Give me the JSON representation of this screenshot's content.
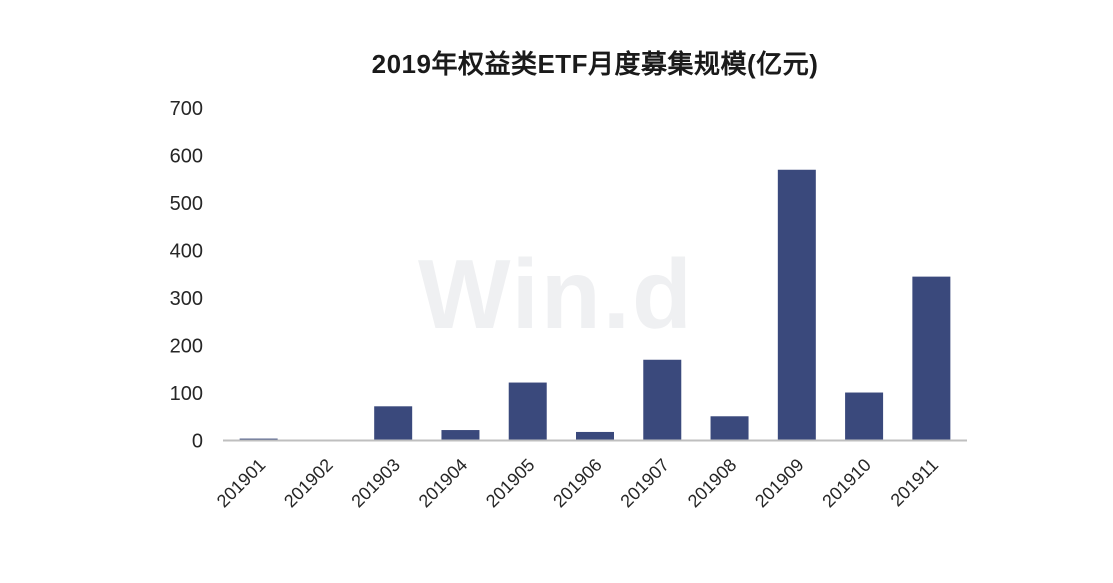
{
  "watermark_text": "Win.d",
  "colors": {
    "bar": "#3a497c",
    "axis_line": "#bfbfbf",
    "tick_text": "#262626",
    "title_text": "#1a1a1a",
    "watermark_text": "#eff0f2"
  },
  "chart_data": {
    "type": "bar",
    "title": "2019年权益类ETF月度募集规模(亿元)",
    "categories": [
      "201901",
      "201902",
      "201903",
      "201904",
      "201905",
      "201906",
      "201907",
      "201908",
      "201909",
      "201910",
      "201911"
    ],
    "values": [
      4,
      0,
      72,
      22,
      122,
      18,
      170,
      51,
      570,
      101,
      345
    ],
    "xlabel": "",
    "ylabel": "",
    "ylim": [
      0,
      700
    ],
    "yticks": [
      0,
      100,
      200,
      300,
      400,
      500,
      600,
      700
    ],
    "grid": false,
    "legend": null,
    "x_tick_rotation_deg": -45
  }
}
